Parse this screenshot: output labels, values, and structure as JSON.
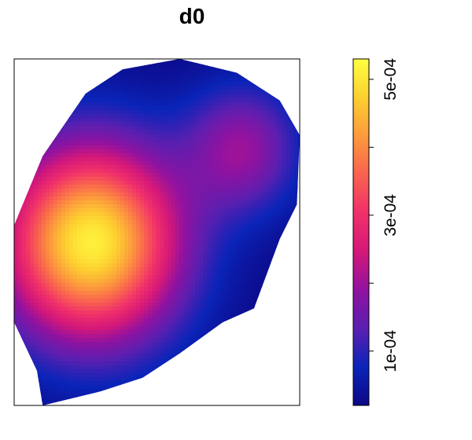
{
  "chart_data": {
    "type": "heatmap",
    "title": "d0",
    "xlabel": "",
    "ylabel": "",
    "value_range": [
      2e-05,
      0.00053
    ],
    "colorbar": {
      "ticks": [
        0.0001,
        0.0002,
        0.0003,
        0.0004,
        0.0005
      ],
      "tick_labels": [
        "1e-04",
        "",
        "3e-04",
        "",
        "5e-04"
      ],
      "colors": [
        "#0d0887",
        "#0a24b8",
        "#5a1fb0",
        "#9012a0",
        "#d41879",
        "#f0306a",
        "#f9624f",
        "#fc9a3c",
        "#fdd030",
        "#ffff40"
      ]
    },
    "background_value": 2e-05,
    "hotspots": [
      {
        "label": "primary peak (lower left)",
        "x": 0.27,
        "y": 0.47,
        "peak": 0.00051
      },
      {
        "label": "secondary peak (upper right)",
        "x": 0.8,
        "y": 0.74,
        "peak": 0.00019
      }
    ],
    "region_outline": [
      [
        0.1,
        0.0
      ],
      [
        0.08,
        0.1
      ],
      [
        0.0,
        0.24
      ],
      [
        0.0,
        0.52
      ],
      [
        0.1,
        0.72
      ],
      [
        0.25,
        0.9
      ],
      [
        0.38,
        0.97
      ],
      [
        0.58,
        1.0
      ],
      [
        0.78,
        0.96
      ],
      [
        0.93,
        0.88
      ],
      [
        1.0,
        0.78
      ],
      [
        0.99,
        0.58
      ],
      [
        0.93,
        0.48
      ],
      [
        0.84,
        0.28
      ],
      [
        0.73,
        0.24
      ],
      [
        0.58,
        0.15
      ],
      [
        0.45,
        0.08
      ],
      [
        0.3,
        0.04
      ]
    ]
  }
}
